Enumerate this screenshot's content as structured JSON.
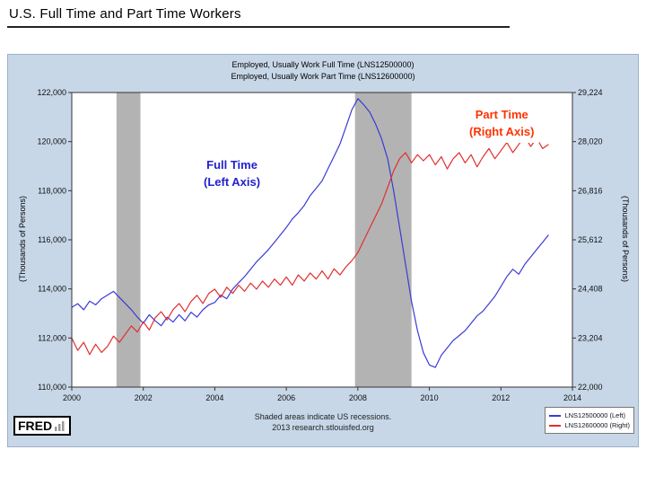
{
  "page": {
    "title": "U.S. Full Time and Part Time Workers"
  },
  "chart": {
    "title_line1": "Employed, Usually Work Full Time (LNS12500000)",
    "title_line2": "Employed, Usually Work Part Time (LNS12600000)",
    "left_axis_title": "(Thousands of Persons)",
    "right_axis_title": "(Thousands of Persons)",
    "annotations": {
      "full_time": "Full Time\n(Left Axis)",
      "part_time": "Part Time\n(Right Axis)"
    },
    "footer_line1": "Shaded areas indicate US recessions.",
    "footer_line2": "2013 research.stlouisfed.org",
    "logo_text": "FRED",
    "legend": [
      {
        "label": "LNS12500000 (Left)"
      },
      {
        "label": "LNS12600000 (Right)"
      }
    ]
  },
  "chart_data": {
    "type": "line",
    "title": "Employed, Usually Work Full Time (LNS12500000) / Employed, Usually Work Part Time (LNS12600000)",
    "x_start": 2000,
    "x_step": 0.1666667,
    "x_min": 2000,
    "x_max": 2014,
    "x_ticks": [
      2000,
      2002,
      2004,
      2006,
      2008,
      2010,
      2012,
      2014
    ],
    "left_axis": {
      "label": "(Thousands of Persons)",
      "min": 110000,
      "max": 122000,
      "ticks": [
        110000,
        112000,
        114000,
        116000,
        118000,
        120000,
        122000
      ]
    },
    "right_axis": {
      "label": "(Thousands of Persons)",
      "min": 22000,
      "max": 29224,
      "ticks": [
        22000,
        23204,
        24408,
        25612,
        26816,
        28020,
        29224
      ]
    },
    "recessions": [
      [
        2001.25,
        2001.92
      ],
      [
        2007.92,
        2009.5
      ]
    ],
    "series": [
      {
        "name": "LNS12500000 (Left)",
        "axis": "left",
        "color": "#3a3ad6",
        "values": [
          113250,
          113400,
          113150,
          113500,
          113350,
          113600,
          113750,
          113900,
          113650,
          113400,
          113150,
          112850,
          112600,
          112950,
          112700,
          112500,
          112850,
          112650,
          112950,
          112700,
          113050,
          112850,
          113150,
          113350,
          113450,
          113750,
          113600,
          114000,
          114250,
          114500,
          114800,
          115100,
          115350,
          115600,
          115900,
          116200,
          116500,
          116850,
          117100,
          117400,
          117800,
          118100,
          118400,
          118900,
          119400,
          119900,
          120600,
          121300,
          121750,
          121500,
          121200,
          120700,
          120100,
          119300,
          118000,
          116500,
          115000,
          113500,
          112300,
          111400,
          110900,
          110800,
          111300,
          111600,
          111900,
          112100,
          112300,
          112600,
          112900,
          113100,
          113400,
          113700,
          114100,
          114500,
          114800,
          114600,
          115000,
          115300,
          115600,
          115900,
          116200
        ]
      },
      {
        "name": "LNS12600000 (Right)",
        "axis": "right",
        "color": "#e03030",
        "values": [
          23200,
          22900,
          23100,
          22800,
          23050,
          22850,
          23000,
          23250,
          23100,
          23300,
          23500,
          23350,
          23600,
          23400,
          23700,
          23850,
          23650,
          23900,
          24050,
          23850,
          24100,
          24250,
          24050,
          24300,
          24400,
          24200,
          24450,
          24300,
          24500,
          24350,
          24550,
          24400,
          24600,
          24450,
          24650,
          24500,
          24700,
          24500,
          24750,
          24600,
          24800,
          24650,
          24850,
          24650,
          24900,
          24750,
          24950,
          25100,
          25300,
          25600,
          25900,
          26200,
          26500,
          26900,
          27300,
          27600,
          27750,
          27500,
          27700,
          27550,
          27700,
          27450,
          27650,
          27350,
          27600,
          27750,
          27500,
          27700,
          27400,
          27650,
          27850,
          27600,
          27800,
          28000,
          27750,
          27950,
          28150,
          27900,
          28100,
          27850,
          27950
        ]
      }
    ],
    "colors": {
      "background": "#c7d7e8",
      "recession": "#b3b3b3",
      "plot_background": "#ffffff",
      "full_time_label": "#1f1fd0",
      "part_time_label": "#ff3300"
    }
  }
}
